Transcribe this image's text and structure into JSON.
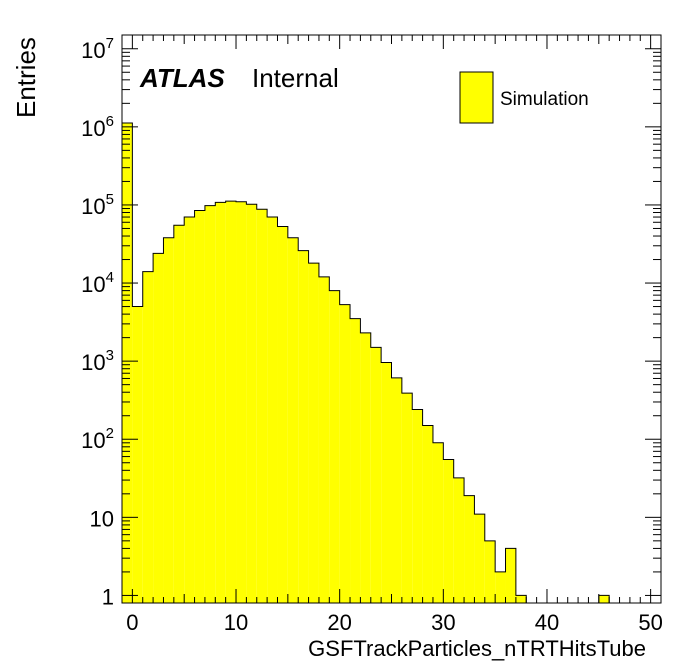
{
  "chart_data": {
    "type": "bar",
    "style": "histogram-step",
    "title": "",
    "xlabel": "GSFTrackParticles_nTRTHitsTube",
    "ylabel": "Entries",
    "xlim": [
      -1,
      51
    ],
    "ylim": [
      0.8,
      15000000
    ],
    "yscale": "log",
    "grid": false,
    "legend_position": "top-right",
    "bin_width": 1,
    "series": [
      {
        "name": "Simulation",
        "color": "#ffff00",
        "edge_color": "#000000",
        "bins": [
          [
            -1,
            1120000
          ],
          [
            0,
            5000
          ],
          [
            1,
            14000
          ],
          [
            2,
            24000
          ],
          [
            3,
            38000
          ],
          [
            4,
            55000
          ],
          [
            5,
            70000
          ],
          [
            6,
            85000
          ],
          [
            7,
            98000
          ],
          [
            8,
            108000
          ],
          [
            9,
            112000
          ],
          [
            10,
            110000
          ],
          [
            11,
            102000
          ],
          [
            12,
            88000
          ],
          [
            13,
            70000
          ],
          [
            14,
            53000
          ],
          [
            15,
            38000
          ],
          [
            16,
            26000
          ],
          [
            17,
            18000
          ],
          [
            18,
            12000
          ],
          [
            19,
            8000
          ],
          [
            20,
            5300
          ],
          [
            21,
            3500
          ],
          [
            22,
            2300
          ],
          [
            23,
            1500
          ],
          [
            24,
            960
          ],
          [
            25,
            610
          ],
          [
            26,
            390
          ],
          [
            27,
            240
          ],
          [
            28,
            150
          ],
          [
            29,
            90
          ],
          [
            30,
            55
          ],
          [
            31,
            32
          ],
          [
            32,
            19
          ],
          [
            33,
            11
          ],
          [
            34,
            5
          ],
          [
            35,
            2
          ],
          [
            36,
            4
          ],
          [
            37,
            1
          ],
          [
            38,
            0
          ],
          [
            39,
            0
          ],
          [
            40,
            0
          ],
          [
            41,
            0
          ],
          [
            42,
            0
          ],
          [
            43,
            0
          ],
          [
            44,
            0
          ],
          [
            45,
            1
          ],
          [
            46,
            0
          ],
          [
            47,
            0
          ],
          [
            48,
            0
          ],
          [
            49,
            0
          ]
        ]
      }
    ],
    "x_ticks": [
      {
        "value": 0,
        "label": "0"
      },
      {
        "value": 10,
        "label": "10"
      },
      {
        "value": 20,
        "label": "20"
      },
      {
        "value": 30,
        "label": "30"
      },
      {
        "value": 40,
        "label": "40"
      },
      {
        "value": 50,
        "label": "50"
      }
    ],
    "y_ticks": [
      {
        "value": 1,
        "label": "1",
        "base": "",
        "exp": ""
      },
      {
        "value": 10,
        "label": "10",
        "base": "",
        "exp": ""
      },
      {
        "value": 100,
        "label": "",
        "base": "10",
        "exp": "2"
      },
      {
        "value": 1000,
        "label": "",
        "base": "10",
        "exp": "3"
      },
      {
        "value": 10000,
        "label": "",
        "base": "10",
        "exp": "4"
      },
      {
        "value": 100000,
        "label": "",
        "base": "10",
        "exp": "5"
      },
      {
        "value": 1000000,
        "label": "",
        "base": "10",
        "exp": "6"
      },
      {
        "value": 10000000,
        "label": "",
        "base": "10",
        "exp": "7"
      }
    ],
    "annotations": {
      "experiment": "ATLAS",
      "status": "Internal"
    }
  }
}
